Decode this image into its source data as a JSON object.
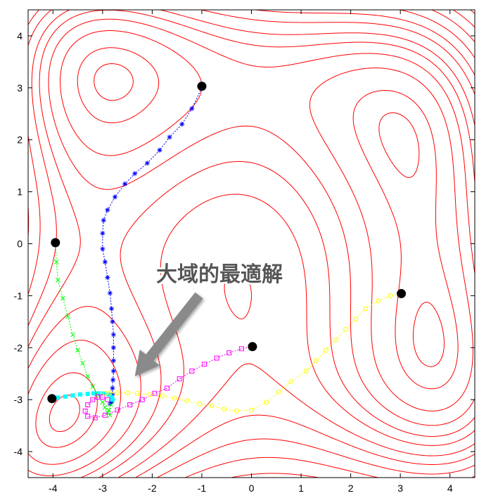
{
  "chart_data": {
    "type": "contour",
    "function": "Himmelblau",
    "xlim": [
      -4.5,
      4.5
    ],
    "ylim": [
      -4.5,
      4.5
    ],
    "xticks": [
      -4,
      -3,
      -2,
      -1,
      0,
      1,
      2,
      3,
      4
    ],
    "yticks": [
      -4,
      -3,
      -2,
      -1,
      0,
      1,
      2,
      3,
      4
    ],
    "xtick_labels": [
      "-4",
      "-3",
      "-2",
      "-1",
      "0",
      "1",
      "2",
      "3",
      "4"
    ],
    "ytick_labels": [
      "-4",
      "-3",
      "-2",
      "-1",
      "0",
      "1",
      "2",
      "3",
      "4"
    ],
    "contour_levels": [
      5,
      20,
      50,
      80,
      110,
      140,
      180,
      220,
      270,
      330,
      400,
      480,
      570,
      670,
      780,
      900,
      1030,
      1170,
      1320
    ],
    "contour_color": "#ff0000",
    "start_points": [
      {
        "x": -1.0,
        "y": 3.03
      },
      {
        "x": -3.95,
        "y": 0.02
      },
      {
        "x": -4.02,
        "y": -2.98
      },
      {
        "x": 0.02,
        "y": -1.98
      },
      {
        "x": 3.02,
        "y": -0.96
      }
    ],
    "series": [
      {
        "color": "#0000ff",
        "marker": "asterisk",
        "points": [
          [
            -1.0,
            3.0
          ],
          [
            -1.2,
            2.6
          ],
          [
            -1.4,
            2.3
          ],
          [
            -1.65,
            2.05
          ],
          [
            -1.85,
            1.8
          ],
          [
            -2.1,
            1.55
          ],
          [
            -2.35,
            1.35
          ],
          [
            -2.55,
            1.15
          ],
          [
            -2.75,
            0.9
          ],
          [
            -2.9,
            0.65
          ],
          [
            -2.98,
            0.45
          ],
          [
            -3.0,
            0.2
          ],
          [
            -3.0,
            -0.1
          ],
          [
            -2.95,
            -0.35
          ],
          [
            -2.9,
            -0.65
          ],
          [
            -2.85,
            -0.95
          ],
          [
            -2.82,
            -1.25
          ],
          [
            -2.8,
            -1.5
          ],
          [
            -2.78,
            -1.75
          ],
          [
            -2.78,
            -2.0
          ],
          [
            -2.78,
            -2.25
          ],
          [
            -2.78,
            -2.45
          ],
          [
            -2.79,
            -2.62
          ],
          [
            -2.8,
            -2.78
          ],
          [
            -2.8,
            -2.9
          ],
          [
            -2.8,
            -3.0
          ],
          [
            -2.82,
            -3.05
          ],
          [
            -2.85,
            -3.08
          ]
        ]
      },
      {
        "color": "#00ff00",
        "marker": "x",
        "points": [
          [
            -3.95,
            0.0
          ],
          [
            -3.93,
            -0.35
          ],
          [
            -3.9,
            -0.7
          ],
          [
            -3.8,
            -1.05
          ],
          [
            -3.7,
            -1.4
          ],
          [
            -3.6,
            -1.75
          ],
          [
            -3.5,
            -2.05
          ],
          [
            -3.4,
            -2.3
          ],
          [
            -3.3,
            -2.55
          ],
          [
            -3.2,
            -2.75
          ],
          [
            -3.1,
            -2.9
          ],
          [
            -3.0,
            -3.05
          ],
          [
            -2.95,
            -3.15
          ],
          [
            -2.9,
            -3.25
          ],
          [
            -2.85,
            -3.3
          ],
          [
            -2.87,
            -3.2
          ],
          [
            -2.83,
            -3.1
          ]
        ]
      },
      {
        "color": "#00ffff",
        "marker": "filled-square",
        "points": [
          [
            -4.02,
            -2.98
          ],
          [
            -3.9,
            -2.96
          ],
          [
            -3.75,
            -2.94
          ],
          [
            -3.6,
            -2.92
          ],
          [
            -3.45,
            -2.9
          ],
          [
            -3.3,
            -2.89
          ],
          [
            -3.18,
            -2.88
          ],
          [
            -3.08,
            -2.88
          ],
          [
            -2.98,
            -2.88
          ],
          [
            -2.88,
            -2.9
          ],
          [
            -2.82,
            -2.95
          ],
          [
            -2.8,
            -3.0
          ]
        ]
      },
      {
        "color": "#ff00ff",
        "marker": "square",
        "points": [
          [
            0.02,
            -1.98
          ],
          [
            -0.2,
            -2.02
          ],
          [
            -0.45,
            -2.1
          ],
          [
            -0.7,
            -2.2
          ],
          [
            -0.95,
            -2.32
          ],
          [
            -1.2,
            -2.45
          ],
          [
            -1.45,
            -2.6
          ],
          [
            -1.7,
            -2.78
          ],
          [
            -1.95,
            -2.88
          ],
          [
            -2.2,
            -3.0
          ],
          [
            -2.45,
            -3.1
          ],
          [
            -2.7,
            -3.2
          ],
          [
            -2.95,
            -3.3
          ],
          [
            -3.15,
            -3.35
          ],
          [
            -3.3,
            -3.32
          ],
          [
            -3.35,
            -3.22
          ],
          [
            -3.3,
            -3.1
          ],
          [
            -3.2,
            -3.0
          ],
          [
            -3.1,
            -2.95
          ],
          [
            -3.0,
            -2.95
          ],
          [
            -2.9,
            -3.0
          ]
        ]
      },
      {
        "color": "#ffff00",
        "marker": "circle",
        "points": [
          [
            3.02,
            -0.96
          ],
          [
            2.8,
            -1.0
          ],
          [
            2.55,
            -1.1
          ],
          [
            2.3,
            -1.25
          ],
          [
            2.1,
            -1.45
          ],
          [
            1.9,
            -1.65
          ],
          [
            1.7,
            -1.85
          ],
          [
            1.5,
            -2.05
          ],
          [
            1.3,
            -2.25
          ],
          [
            1.1,
            -2.45
          ],
          [
            0.8,
            -2.65
          ],
          [
            0.55,
            -2.85
          ],
          [
            0.3,
            -3.05
          ],
          [
            0.0,
            -3.2
          ],
          [
            -0.3,
            -3.22
          ],
          [
            -0.55,
            -3.18
          ],
          [
            -0.8,
            -3.12
          ],
          [
            -1.05,
            -3.08
          ],
          [
            -1.3,
            -3.02
          ],
          [
            -1.55,
            -2.97
          ],
          [
            -1.8,
            -2.93
          ],
          [
            -2.05,
            -2.9
          ],
          [
            -2.3,
            -2.88
          ],
          [
            -2.5,
            -2.87
          ],
          [
            -2.7,
            -2.87
          ],
          [
            -2.85,
            -2.87
          ],
          [
            -2.95,
            -2.88
          ]
        ]
      }
    ]
  },
  "annotation": {
    "text": "大域的最適解",
    "arrow_tip": {
      "x": -2.35,
      "y": -2.55
    }
  }
}
